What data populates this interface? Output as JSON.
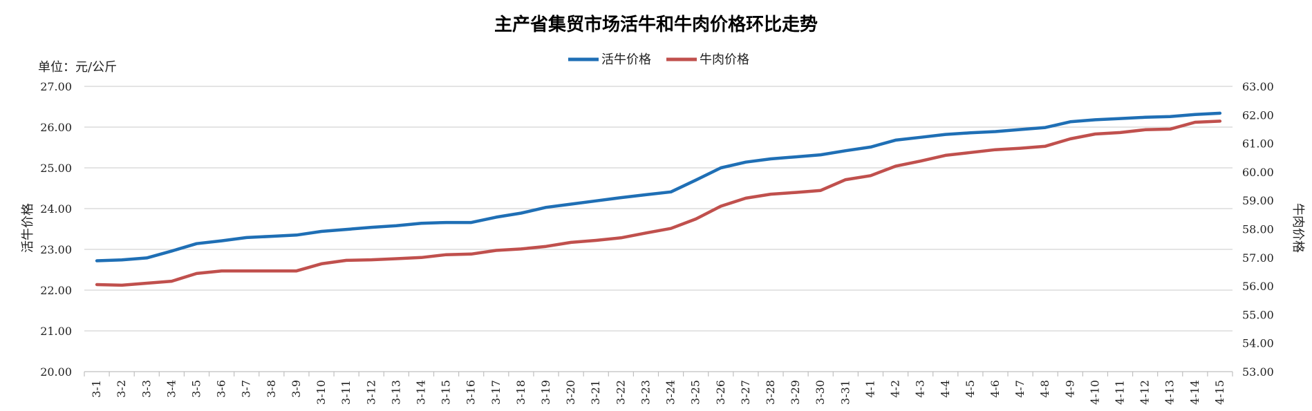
{
  "chart_data": {
    "type": "line",
    "title": "主产省集贸市场活牛和牛肉价格环比走势",
    "unit_label": "单位：元/公斤",
    "ylabel": "活牛价格",
    "y2label": "牛肉价格",
    "ylim": [
      20,
      27
    ],
    "y2lim": [
      53,
      63
    ],
    "yticks": [
      "20.00",
      "21.00",
      "22.00",
      "23.00",
      "24.00",
      "25.00",
      "26.00",
      "27.00"
    ],
    "y2ticks": [
      "53.00",
      "54.00",
      "55.00",
      "56.00",
      "57.00",
      "58.00",
      "59.00",
      "60.00",
      "61.00",
      "62.00",
      "63.00"
    ],
    "grid": true,
    "legend_position": "top-center",
    "categories": [
      "3-1",
      "3-2",
      "3-3",
      "3-4",
      "3-5",
      "3-6",
      "3-7",
      "3-8",
      "3-9",
      "3-10",
      "3-11",
      "3-12",
      "3-13",
      "3-14",
      "3-15",
      "3-16",
      "3-17",
      "3-18",
      "3-19",
      "3-20",
      "3-21",
      "3-22",
      "3-23",
      "3-24",
      "3-25",
      "3-26",
      "3-27",
      "3-28",
      "3-29",
      "3-30",
      "3-31",
      "4-1",
      "4-2",
      "4-3",
      "4-4",
      "4-5",
      "4-6",
      "4-7",
      "4-8",
      "4-9",
      "4-10",
      "4-11",
      "4-12",
      "4-13",
      "4-14",
      "4-15"
    ],
    "series": [
      {
        "name": "活牛价格",
        "axis": "left",
        "color": "#1f6fb5",
        "values": [
          22.72,
          22.74,
          22.79,
          22.96,
          23.14,
          23.21,
          23.29,
          23.32,
          23.35,
          23.44,
          23.49,
          23.54,
          23.58,
          23.64,
          23.66,
          23.66,
          23.79,
          23.89,
          24.03,
          24.11,
          24.19,
          24.27,
          24.34,
          24.41,
          24.7,
          25.0,
          25.14,
          25.22,
          25.27,
          25.32,
          25.42,
          25.51,
          25.68,
          25.75,
          25.82,
          25.86,
          25.89,
          25.94,
          25.99,
          26.13,
          26.18,
          26.21,
          26.24,
          26.26,
          26.31,
          26.34
        ]
      },
      {
        "name": "牛肉价格",
        "axis": "right",
        "color": "#c0504d",
        "values": [
          56.05,
          56.03,
          56.1,
          56.17,
          56.44,
          56.53,
          56.53,
          56.53,
          56.53,
          56.78,
          56.9,
          56.92,
          56.96,
          57.0,
          57.1,
          57.12,
          57.25,
          57.3,
          57.39,
          57.53,
          57.6,
          57.69,
          57.86,
          58.02,
          58.35,
          58.8,
          59.08,
          59.22,
          59.28,
          59.35,
          59.73,
          59.87,
          60.2,
          60.38,
          60.58,
          60.68,
          60.78,
          60.83,
          60.9,
          61.16,
          61.33,
          61.38,
          61.48,
          61.5,
          61.74,
          61.78
        ]
      }
    ]
  }
}
